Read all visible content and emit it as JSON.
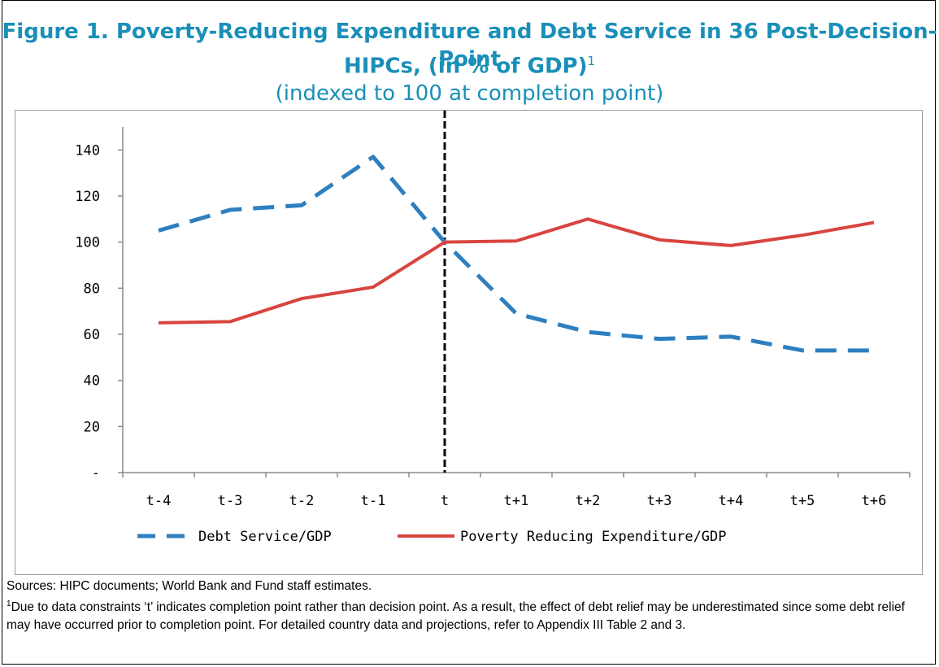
{
  "title_line1": "Figure 1. Poverty-Reducing Expenditure and Debt Service in 36 Post-Decision-Point",
  "title_line2": "HIPCs, (in % of GDP)",
  "title_superscript": "1",
  "subtitle": "(indexed to 100 at completion point)",
  "sources": "Sources: HIPC documents; World Bank and Fund staff estimates.",
  "note_marker": "1",
  "note": "Due to data constraints ‘t’ indicates completion point rather than decision point. As a result, the effect of debt relief may be underestimated since some debt relief may have occurred prior to completion point. For detailed country data and projections, refer to Appendix III Table 2 and 3.",
  "chart_data": {
    "type": "line",
    "categories": [
      "t-4",
      "t-3",
      "t-2",
      "t-1",
      "t",
      "t+1",
      "t+2",
      "t+3",
      "t+4",
      "t+5",
      "t+6"
    ],
    "y_ticks": [
      "-",
      "20",
      "40",
      "60",
      "80",
      "100",
      "120",
      "140"
    ],
    "ylim": [
      0,
      150
    ],
    "vertical_reference_at": "t",
    "series": [
      {
        "name": "Debt Service/GDP",
        "color": "#2e7fbf",
        "style": "dashed",
        "values": [
          105,
          114,
          116,
          137,
          100,
          69,
          61,
          58,
          59,
          53,
          53
        ]
      },
      {
        "name": "Poverty Reducing Expenditure/GDP",
        "color": "#d9443f",
        "style": "solid",
        "values": [
          65,
          65.5,
          75.5,
          80.5,
          100,
          100.5,
          110,
          101,
          98.5,
          103,
          108.5
        ]
      }
    ],
    "legend_position": "bottom"
  }
}
